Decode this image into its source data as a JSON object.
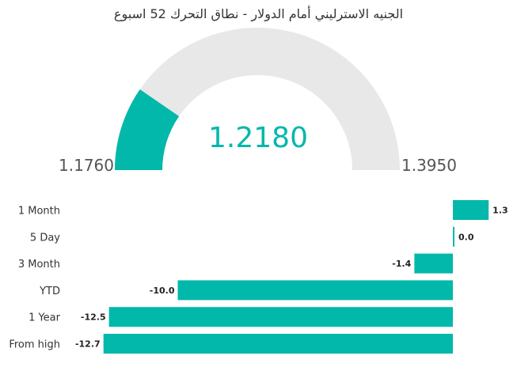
{
  "title": "الجنيه الاسترليني أمام الدولار  - نطاق التحرك 52 اسبوع",
  "colors": {
    "accent": "#01B8AA",
    "track": "#E8E8E8",
    "text": "#333333"
  },
  "chart_data": [
    {
      "type": "gauge",
      "value": "1.2180",
      "min": "1.1760",
      "max": "1.3950"
    },
    {
      "type": "bar",
      "orientation": "horizontal",
      "categories": [
        "1 Month",
        "5 Day",
        "3 Month",
        "YTD",
        "1 Year",
        "From high"
      ],
      "values": [
        1.3,
        0.0,
        -1.4,
        -10.0,
        -12.5,
        -12.7
      ],
      "labels": [
        "1.3",
        "0.0",
        "-1.4",
        "-10.0",
        "-12.5",
        "-12.7"
      ]
    }
  ]
}
